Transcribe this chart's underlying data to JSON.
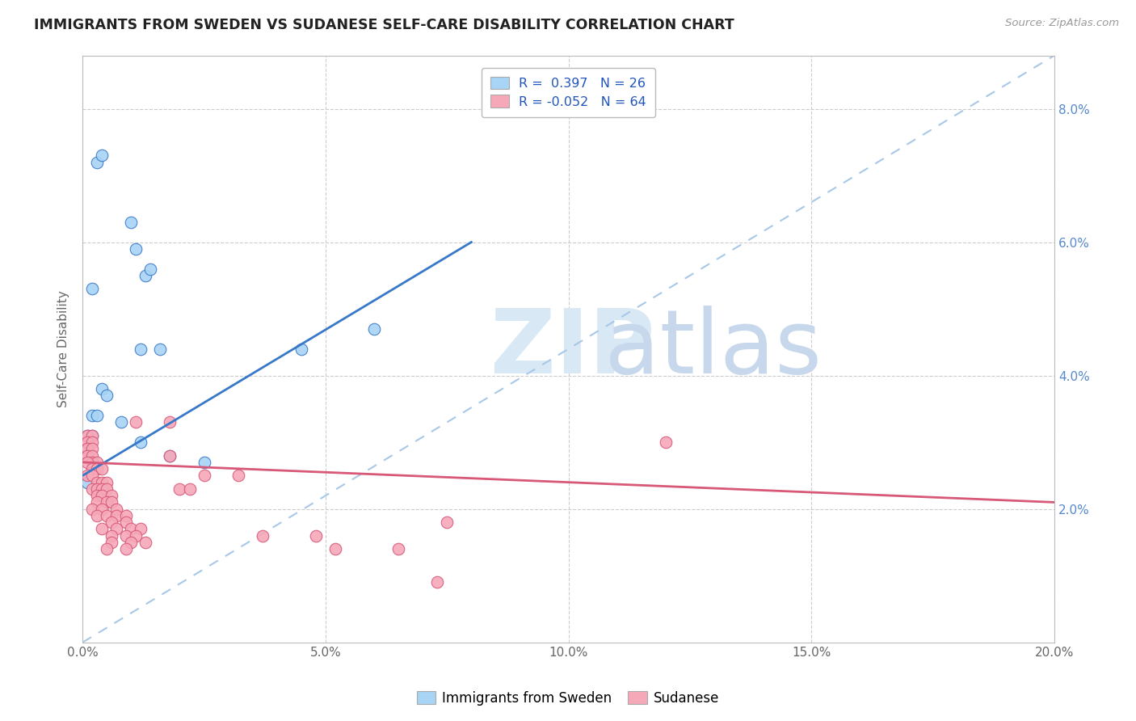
{
  "title": "IMMIGRANTS FROM SWEDEN VS SUDANESE SELF-CARE DISABILITY CORRELATION CHART",
  "source": "Source: ZipAtlas.com",
  "ylabel": "Self-Care Disability",
  "xlim": [
    0.0,
    0.2
  ],
  "ylim": [
    0.0,
    0.088
  ],
  "yticks": [
    0.02,
    0.04,
    0.06,
    0.08
  ],
  "xticks": [
    0.0,
    0.05,
    0.1,
    0.15,
    0.2
  ],
  "legend_label1": "Immigrants from Sweden",
  "legend_label2": "Sudanese",
  "color_sweden": "#A8D4F5",
  "color_sudan": "#F5A8B8",
  "color_sweden_line": "#3878C8",
  "color_sudan_line": "#D85878",
  "color_diagonal": "#A8C8E8",
  "background_color": "#FFFFFF",
  "sweden_points": [
    [
      0.003,
      0.072
    ],
    [
      0.004,
      0.073
    ],
    [
      0.002,
      0.053
    ],
    [
      0.01,
      0.063
    ],
    [
      0.011,
      0.059
    ],
    [
      0.013,
      0.055
    ],
    [
      0.014,
      0.056
    ],
    [
      0.012,
      0.044
    ],
    [
      0.016,
      0.044
    ],
    [
      0.004,
      0.038
    ],
    [
      0.005,
      0.037
    ],
    [
      0.002,
      0.034
    ],
    [
      0.003,
      0.034
    ],
    [
      0.001,
      0.031
    ],
    [
      0.002,
      0.031
    ],
    [
      0.001,
      0.029
    ],
    [
      0.001,
      0.028
    ],
    [
      0.002,
      0.027
    ],
    [
      0.001,
      0.024
    ],
    [
      0.003,
      0.023
    ],
    [
      0.008,
      0.033
    ],
    [
      0.012,
      0.03
    ],
    [
      0.018,
      0.028
    ],
    [
      0.025,
      0.027
    ],
    [
      0.045,
      0.044
    ],
    [
      0.06,
      0.047
    ]
  ],
  "sudan_points": [
    [
      0.001,
      0.031
    ],
    [
      0.002,
      0.031
    ],
    [
      0.001,
      0.03
    ],
    [
      0.002,
      0.03
    ],
    [
      0.001,
      0.029
    ],
    [
      0.002,
      0.029
    ],
    [
      0.001,
      0.028
    ],
    [
      0.002,
      0.028
    ],
    [
      0.002,
      0.027
    ],
    [
      0.003,
      0.027
    ],
    [
      0.001,
      0.027
    ],
    [
      0.002,
      0.026
    ],
    [
      0.003,
      0.026
    ],
    [
      0.004,
      0.026
    ],
    [
      0.001,
      0.025
    ],
    [
      0.002,
      0.025
    ],
    [
      0.003,
      0.024
    ],
    [
      0.004,
      0.024
    ],
    [
      0.005,
      0.024
    ],
    [
      0.002,
      0.023
    ],
    [
      0.003,
      0.023
    ],
    [
      0.004,
      0.023
    ],
    [
      0.005,
      0.023
    ],
    [
      0.003,
      0.022
    ],
    [
      0.004,
      0.022
    ],
    [
      0.006,
      0.022
    ],
    [
      0.003,
      0.021
    ],
    [
      0.005,
      0.021
    ],
    [
      0.006,
      0.021
    ],
    [
      0.002,
      0.02
    ],
    [
      0.004,
      0.02
    ],
    [
      0.007,
      0.02
    ],
    [
      0.003,
      0.019
    ],
    [
      0.005,
      0.019
    ],
    [
      0.007,
      0.019
    ],
    [
      0.009,
      0.019
    ],
    [
      0.006,
      0.018
    ],
    [
      0.009,
      0.018
    ],
    [
      0.004,
      0.017
    ],
    [
      0.007,
      0.017
    ],
    [
      0.01,
      0.017
    ],
    [
      0.012,
      0.017
    ],
    [
      0.006,
      0.016
    ],
    [
      0.009,
      0.016
    ],
    [
      0.011,
      0.016
    ],
    [
      0.006,
      0.015
    ],
    [
      0.01,
      0.015
    ],
    [
      0.013,
      0.015
    ],
    [
      0.005,
      0.014
    ],
    [
      0.009,
      0.014
    ],
    [
      0.011,
      0.033
    ],
    [
      0.018,
      0.033
    ],
    [
      0.018,
      0.028
    ],
    [
      0.02,
      0.023
    ],
    [
      0.022,
      0.023
    ],
    [
      0.025,
      0.025
    ],
    [
      0.032,
      0.025
    ],
    [
      0.037,
      0.016
    ],
    [
      0.048,
      0.016
    ],
    [
      0.052,
      0.014
    ],
    [
      0.065,
      0.014
    ],
    [
      0.073,
      0.009
    ],
    [
      0.12,
      0.03
    ],
    [
      0.075,
      0.018
    ]
  ],
  "sweden_line": [
    [
      0.0,
      0.025
    ],
    [
      0.08,
      0.06
    ]
  ],
  "sudan_line": [
    [
      0.0,
      0.027
    ],
    [
      0.2,
      0.021
    ]
  ],
  "diagonal_line": [
    [
      0.0,
      0.0
    ],
    [
      0.2,
      0.088
    ]
  ]
}
